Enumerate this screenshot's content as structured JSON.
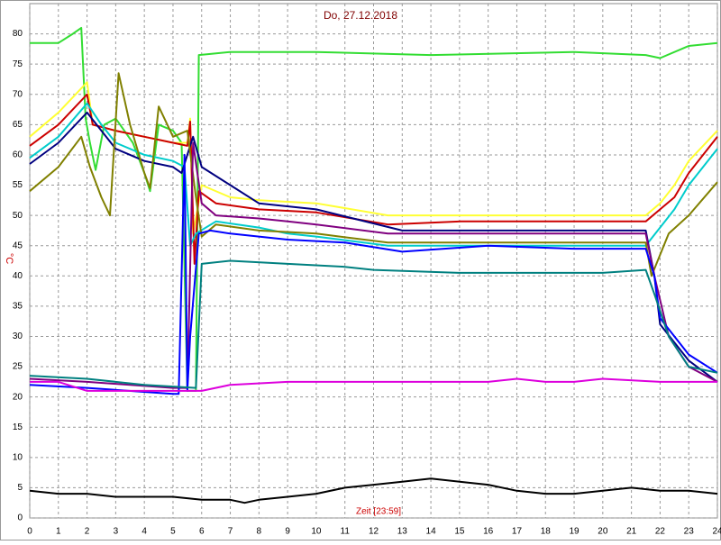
{
  "chart_data": {
    "type": "line",
    "title": "Do, 27.12.2018",
    "ylabel": "°C",
    "xlabel": "Zeit [23:59]",
    "xlim": [
      0,
      24
    ],
    "xticks": [
      0,
      1,
      2,
      3,
      4,
      5,
      6,
      7,
      8,
      9,
      10,
      11,
      12,
      13,
      14,
      15,
      16,
      17,
      18,
      19,
      20,
      21,
      22,
      23,
      24
    ],
    "ylim": [
      0,
      85
    ],
    "yticks": [
      0,
      5,
      10,
      15,
      20,
      25,
      30,
      35,
      40,
      45,
      50,
      55,
      60,
      65,
      70,
      75,
      80
    ],
    "grid": true,
    "series": [
      {
        "color": "#33dd33",
        "x": [
          0,
          1,
          1.5,
          1.8,
          1.95,
          2.1,
          2.3,
          2.6,
          3,
          3.6,
          4,
          4.2,
          4.5,
          5,
          5.3,
          5.5,
          5.8,
          5.9,
          7,
          10,
          14,
          19,
          21.5,
          22,
          23,
          24
        ],
        "values": [
          78.5,
          78.5,
          80,
          81,
          66,
          62,
          57.5,
          65,
          66,
          62,
          57,
          54,
          65,
          64,
          62,
          21,
          21,
          76.5,
          77,
          77,
          76.5,
          77,
          76.5,
          76,
          78,
          78.5
        ]
      },
      {
        "color": "#ffff33",
        "x": [
          0,
          1,
          2,
          2.2,
          3,
          4,
          5,
          5.5,
          5.6,
          5.7,
          6,
          7,
          8,
          10,
          12.5,
          15,
          18,
          21.5,
          22,
          22.5,
          23,
          24
        ],
        "values": [
          63,
          67,
          72,
          65,
          64,
          63,
          62,
          62,
          66,
          47,
          55,
          53,
          52.5,
          52,
          50,
          50,
          50,
          50,
          52,
          55,
          59,
          64
        ]
      },
      {
        "color": "#cc0000",
        "x": [
          0,
          1,
          2,
          2.2,
          3,
          4,
          5,
          5.5,
          5.6,
          5.75,
          5.9,
          6.5,
          8,
          10,
          12.5,
          15,
          18,
          21.5,
          22,
          22.5,
          23,
          24
        ],
        "values": [
          61.5,
          65,
          70,
          65,
          64,
          63,
          62,
          61.5,
          65.5,
          42,
          54,
          52,
          51,
          50.5,
          48.5,
          49,
          49,
          49,
          51,
          53,
          57,
          63
        ]
      },
      {
        "color": "#00cccc",
        "x": [
          0,
          1,
          2,
          2.5,
          3,
          4,
          5,
          5.4,
          5.6,
          5.8,
          6.5,
          8,
          9,
          10,
          12.5,
          15,
          18,
          21.5,
          22,
          22.5,
          23,
          24
        ],
        "values": [
          59.5,
          63,
          68.5,
          65,
          62,
          60,
          59,
          58,
          45,
          47,
          49,
          48,
          47,
          46.5,
          45,
          45,
          45,
          45,
          48,
          51,
          55,
          61
        ]
      },
      {
        "color": "#000080",
        "x": [
          0,
          1,
          2,
          3,
          3.5,
          4,
          5,
          5.3,
          5.7,
          6,
          7,
          8,
          10,
          13,
          16,
          19,
          21.5,
          21.8,
          22,
          22.5,
          23,
          24
        ],
        "values": [
          58.5,
          62,
          67,
          61,
          60,
          59,
          58,
          57,
          63,
          58,
          55,
          52,
          51,
          47.5,
          47.5,
          47.5,
          47.5,
          40,
          32,
          29,
          26,
          22.5
        ]
      },
      {
        "color": "#808000",
        "x": [
          0,
          1,
          1.8,
          2.1,
          2.5,
          2.8,
          3.1,
          3.5,
          4,
          4.2,
          4.5,
          5,
          5.5,
          5.8,
          6,
          6.5,
          8,
          10,
          12.5,
          16,
          21.5,
          21.7,
          22.3,
          23,
          24
        ],
        "values": [
          54,
          58,
          63,
          58,
          53,
          50,
          73.5,
          65,
          57,
          54.5,
          68,
          63,
          64,
          53,
          46.5,
          48.5,
          47.5,
          47,
          45.5,
          45.5,
          45.5,
          40,
          47,
          50,
          55.5
        ]
      },
      {
        "color": "#800080",
        "x": [
          0,
          2,
          5,
          5.5,
          5.7,
          6,
          6.5,
          8,
          9,
          10,
          12.5,
          16,
          21.5,
          21.8,
          22.3,
          23,
          24
        ],
        "values": [
          23,
          22.5,
          21.5,
          21.5,
          62,
          52,
          50,
          49.5,
          49,
          48.5,
          47,
          47,
          47,
          40,
          30,
          25,
          22.5
        ]
      },
      {
        "color": "#0000ff",
        "x": [
          0,
          2,
          5,
          5.2,
          5.4,
          5.5,
          5.6,
          5.9,
          6.3,
          7,
          9,
          11,
          13,
          16,
          19,
          21.5,
          21.8,
          22,
          23,
          24
        ],
        "values": [
          22,
          21.5,
          20.5,
          20.5,
          60,
          21,
          30,
          47,
          47.5,
          47,
          46,
          45.5,
          44,
          45,
          44.5,
          44.5,
          40,
          33,
          27,
          24
        ]
      },
      {
        "color": "#008080",
        "x": [
          0,
          2,
          4,
          5.8,
          6,
          7,
          9,
          11,
          12,
          15,
          18,
          20,
          21.5,
          21.8,
          22.3,
          23,
          24
        ],
        "values": [
          23.5,
          23,
          22,
          21.5,
          42,
          42.5,
          42,
          41.5,
          41,
          40.5,
          40.5,
          40.5,
          41,
          37,
          30,
          25,
          24
        ]
      },
      {
        "color": "#dd00dd",
        "x": [
          0,
          1,
          2,
          5,
          6,
          7,
          9,
          12,
          16,
          17,
          18,
          19,
          20,
          22,
          24
        ],
        "values": [
          22.5,
          22.5,
          21,
          21,
          21,
          22,
          22.5,
          22.5,
          22.5,
          23,
          22.5,
          22.5,
          23,
          22.5,
          22.5
        ]
      },
      {
        "color": "#000000",
        "x": [
          0,
          1,
          2,
          3,
          4,
          5,
          6,
          7,
          7.5,
          8,
          9,
          10,
          11,
          12,
          13,
          14,
          15,
          16,
          17,
          18,
          19,
          20,
          21,
          22,
          23,
          24
        ],
        "values": [
          4.5,
          4,
          4,
          3.5,
          3.5,
          3.5,
          3,
          3,
          2.5,
          3,
          3.5,
          4,
          5,
          5.5,
          6,
          6.5,
          6,
          5.5,
          4.5,
          4,
          4,
          4.5,
          5,
          4.5,
          4.5,
          4
        ]
      }
    ]
  }
}
